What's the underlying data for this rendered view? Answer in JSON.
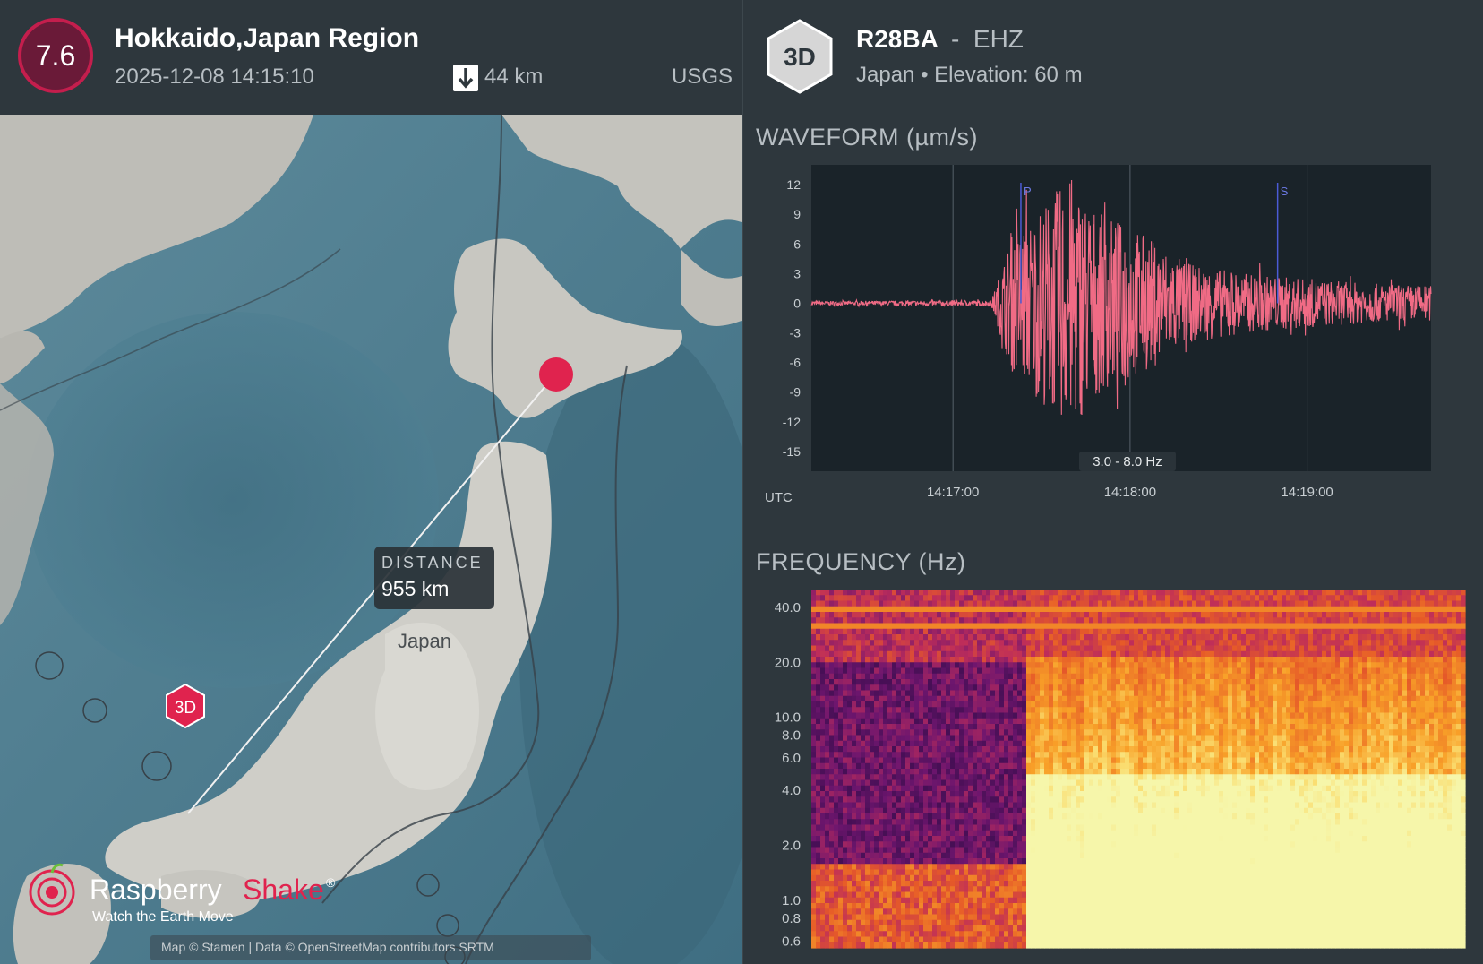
{
  "event": {
    "magnitude": "7.6",
    "region": "Hokkaido,Japan Region",
    "datetime": "2025-12-08 14:15:10",
    "depth": "44 km",
    "source": "USGS"
  },
  "station": {
    "badge": "3D",
    "code": "R28BA",
    "separator": "-",
    "channel": "EHZ",
    "country": "Japan",
    "bullet": "•",
    "elevation": "Elevation: 60 m"
  },
  "map": {
    "distance_label": "DISTANCE",
    "distance_value": "955 km",
    "country_label": "Japan",
    "station_marker": "3D",
    "attribution": "Map © Stamen | Data © OpenStreetMap contributors SRTM",
    "brand_name_1": "Raspberry",
    "brand_name_2": "Shake",
    "brand_reg": "®",
    "brand_tagline": "Watch the Earth Move",
    "colors": {
      "land": "#c9c9c4",
      "sea": "#4f7d90",
      "marker": "#e0234e"
    }
  },
  "waveform": {
    "title": "WAVEFORM (µm/s)",
    "filter_label": "3.0 - 8.0 Hz",
    "utc_label": "UTC",
    "p_label": "P",
    "s_label": "S",
    "line_color": "#f06b85"
  },
  "frequency": {
    "title": "FREQUENCY (Hz)"
  },
  "chart_data": [
    {
      "type": "line",
      "name": "waveform",
      "title": "WAVEFORM (µm/s)",
      "xlabel": "UTC",
      "ylabel": "",
      "x_ticks": [
        "14:17:00",
        "14:18:00",
        "14:19:00"
      ],
      "y_ticks": [
        12,
        9,
        6,
        3,
        0,
        -3,
        -6,
        -9,
        -12,
        -15
      ],
      "ylim": [
        -17,
        14
      ],
      "xlim_seconds_from_14_16_12": [
        0,
        210
      ],
      "markers": [
        {
          "label": "P",
          "time": "14:17:23"
        },
        {
          "label": "S",
          "time": "14:18:50"
        }
      ],
      "envelope": {
        "time": [
          "14:16:12",
          "14:17:13",
          "14:17:20",
          "14:17:30",
          "14:17:40",
          "14:17:50",
          "14:18:00",
          "14:18:10",
          "14:18:20",
          "14:18:40",
          "14:19:00",
          "14:19:20",
          "14:19:42"
        ],
        "amplitude": [
          0.2,
          0.3,
          7,
          10,
          13,
          9,
          8,
          6,
          4,
          3,
          2.5,
          2,
          1.8
        ]
      },
      "grid": true,
      "filter": "3.0 - 8.0 Hz"
    },
    {
      "type": "heatmap",
      "name": "spectrogram",
      "title": "FREQUENCY (Hz)",
      "y_ticks": [
        "40.0",
        "20.0",
        "10.0",
        "8.0",
        "6.0",
        "4.0",
        "2.0",
        "1.0",
        "0.8",
        "0.6"
      ],
      "yscale": "log",
      "ylim": [
        0.55,
        50
      ],
      "onset_time": "14:17:20",
      "colormap": "inferno"
    }
  ]
}
